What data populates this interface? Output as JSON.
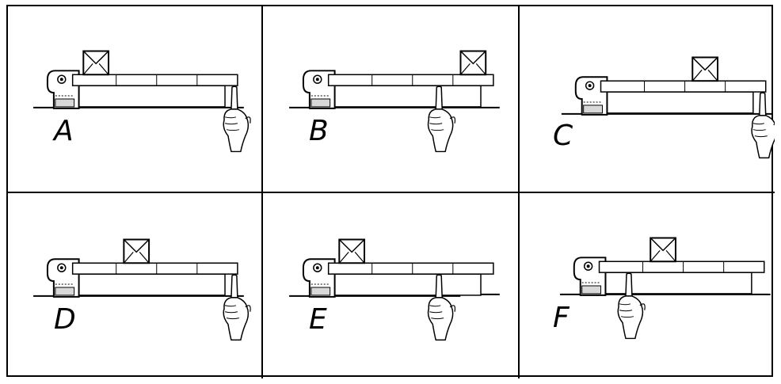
{
  "panels": [
    {
      "label": "A",
      "parcel_slot": 1,
      "finger_slot": 4
    },
    {
      "label": "B",
      "parcel_slot": 4,
      "finger_slot": 3
    },
    {
      "label": "C",
      "parcel_slot": 3,
      "finger_slot": 4
    },
    {
      "label": "D",
      "parcel_slot": 2,
      "finger_slot": 4
    },
    {
      "label": "E",
      "parcel_slot": 1,
      "finger_slot": 3
    },
    {
      "label": "F",
      "parcel_slot": 2,
      "finger_slot": 1
    }
  ],
  "slot_count": 4,
  "colors": {
    "line": "#000000",
    "fill": "#ffffff",
    "shade": "#d8d8d8"
  }
}
